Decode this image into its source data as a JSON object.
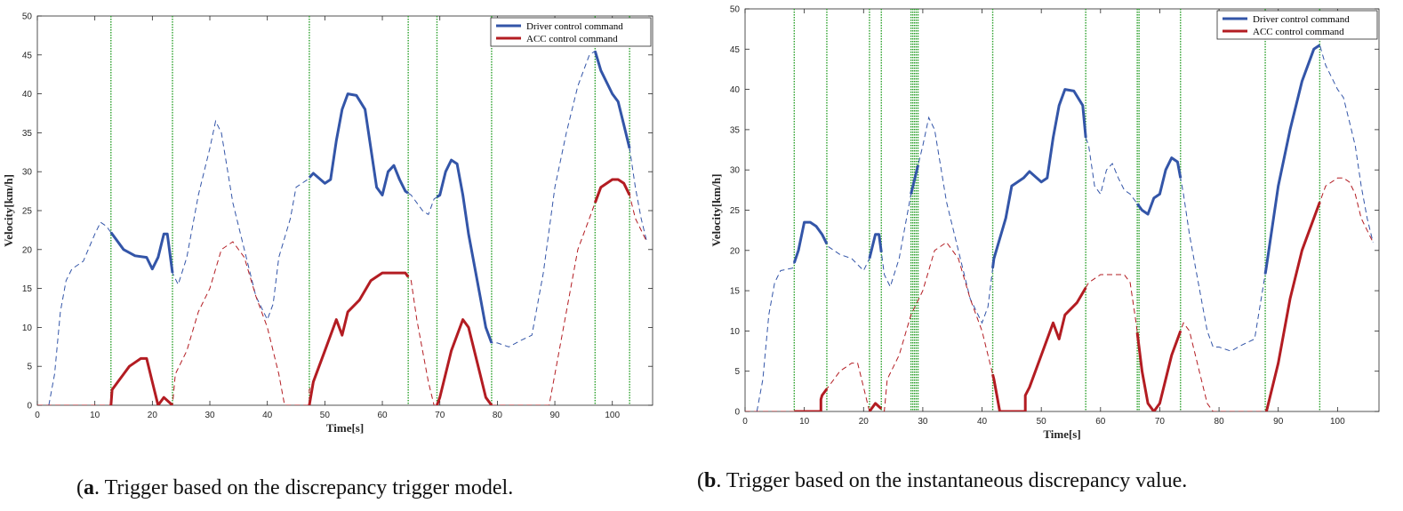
{
  "chart_data": [
    {
      "type": "line",
      "id": "a",
      "xlabel": "Time[s]",
      "ylabel": "Velocity[km/h]",
      "xlim": [
        0,
        107
      ],
      "ylim": [
        0,
        50
      ],
      "xticks": [
        0,
        10,
        20,
        30,
        40,
        50,
        60,
        70,
        80,
        90,
        100
      ],
      "yticks": [
        0,
        5,
        10,
        15,
        20,
        25,
        30,
        35,
        40,
        45,
        50
      ],
      "legend": [
        "Driver control command",
        "ACC control command"
      ],
      "legend_position": "top-right",
      "caption_bold": "a",
      "caption_text": ". Trigger based on the discrepancy trigger model.",
      "trigger_lines": [
        12.8,
        23.5,
        47.3,
        64.5,
        69.5,
        79,
        97,
        103
      ],
      "driver": [
        [
          2,
          0
        ],
        [
          3,
          4
        ],
        [
          4,
          12
        ],
        [
          5,
          16
        ],
        [
          6,
          17.5
        ],
        [
          8,
          18.5
        ],
        [
          10,
          22
        ],
        [
          11,
          23.5
        ],
        [
          12,
          23
        ],
        [
          13,
          22
        ],
        [
          15,
          20
        ],
        [
          17,
          19.2
        ],
        [
          19,
          19
        ],
        [
          20,
          17.5
        ],
        [
          21,
          19
        ],
        [
          22,
          22
        ],
        [
          22.6,
          22
        ],
        [
          23.5,
          17
        ],
        [
          24.5,
          15.5
        ],
        [
          26,
          19
        ],
        [
          28,
          27
        ],
        [
          30,
          33
        ],
        [
          31,
          36.5
        ],
        [
          32,
          35
        ],
        [
          34,
          26
        ],
        [
          36,
          20
        ],
        [
          38,
          14
        ],
        [
          40,
          11
        ],
        [
          41,
          13
        ],
        [
          42,
          19
        ],
        [
          44,
          24
        ],
        [
          45,
          28
        ],
        [
          47,
          29
        ],
        [
          48,
          29.8
        ],
        [
          50,
          28.5
        ],
        [
          51,
          29
        ],
        [
          52,
          34
        ],
        [
          53,
          38
        ],
        [
          54,
          40
        ],
        [
          55.5,
          39.8
        ],
        [
          57,
          38
        ],
        [
          58,
          33
        ],
        [
          59,
          28
        ],
        [
          60,
          27
        ],
        [
          61,
          30
        ],
        [
          62,
          30.8
        ],
        [
          63,
          29
        ],
        [
          64,
          27.5
        ],
        [
          65,
          27
        ],
        [
          66,
          26
        ],
        [
          67,
          25
        ],
        [
          68,
          24.5
        ],
        [
          69,
          26.5
        ],
        [
          70,
          27
        ],
        [
          71,
          30
        ],
        [
          72,
          31.5
        ],
        [
          73,
          31
        ],
        [
          74,
          27
        ],
        [
          75,
          22
        ],
        [
          76,
          18
        ],
        [
          77,
          14
        ],
        [
          78,
          10
        ],
        [
          79,
          8
        ],
        [
          80,
          8
        ],
        [
          82,
          7.5
        ],
        [
          84,
          8.3
        ],
        [
          86,
          9
        ],
        [
          88,
          17
        ],
        [
          90,
          28
        ],
        [
          92,
          35
        ],
        [
          94,
          41
        ],
        [
          96,
          45
        ],
        [
          97,
          45.5
        ],
        [
          98,
          43
        ],
        [
          100,
          40
        ],
        [
          101,
          39
        ],
        [
          102,
          36
        ],
        [
          103,
          33
        ],
        [
          104,
          28
        ],
        [
          105,
          24
        ],
        [
          106,
          21
        ]
      ],
      "acc": [
        [
          0,
          0
        ],
        [
          12.8,
          0
        ],
        [
          12.8,
          1.5
        ],
        [
          13,
          2
        ],
        [
          14,
          3
        ],
        [
          15,
          4
        ],
        [
          16,
          5
        ],
        [
          17,
          5.5
        ],
        [
          18,
          6
        ],
        [
          19,
          6
        ],
        [
          20,
          3
        ],
        [
          21,
          0
        ],
        [
          22,
          1
        ],
        [
          23.5,
          0
        ],
        [
          24,
          4
        ],
        [
          26,
          7
        ],
        [
          28,
          12
        ],
        [
          30,
          15
        ],
        [
          32,
          20
        ],
        [
          34,
          21
        ],
        [
          36,
          19
        ],
        [
          38,
          14
        ],
        [
          40,
          10
        ],
        [
          42,
          4
        ],
        [
          43,
          0
        ],
        [
          47.3,
          0
        ],
        [
          47.3,
          2
        ],
        [
          48,
          3
        ],
        [
          50,
          7
        ],
        [
          52,
          11
        ],
        [
          53,
          9
        ],
        [
          54,
          12
        ],
        [
          56,
          13.5
        ],
        [
          58,
          16
        ],
        [
          60,
          17
        ],
        [
          62,
          17
        ],
        [
          64,
          17
        ],
        [
          65,
          16
        ],
        [
          66,
          11
        ],
        [
          67,
          7
        ],
        [
          68,
          3
        ],
        [
          69,
          0
        ],
        [
          69.5,
          0
        ],
        [
          70,
          1
        ],
        [
          72,
          7
        ],
        [
          74,
          11
        ],
        [
          75,
          10
        ],
        [
          77,
          4
        ],
        [
          78,
          1
        ],
        [
          79,
          0
        ],
        [
          89,
          0
        ],
        [
          90,
          4
        ],
        [
          92,
          12
        ],
        [
          94,
          20
        ],
        [
          96,
          24
        ],
        [
          97,
          26
        ],
        [
          98,
          28
        ],
        [
          100,
          29
        ],
        [
          101,
          29
        ],
        [
          102,
          28.5
        ],
        [
          103,
          27
        ],
        [
          104,
          24
        ],
        [
          106,
          21
        ]
      ],
      "driver_solid": [
        [
          12.8,
          23.5
        ],
        [
          47.3,
          64.5
        ],
        [
          69.5,
          79
        ],
        [
          97,
          103
        ]
      ],
      "acc_solid": [
        [
          12.8,
          23.5
        ],
        [
          47.3,
          64.5
        ],
        [
          69.5,
          79
        ],
        [
          97,
          103
        ]
      ]
    },
    {
      "type": "line",
      "id": "b",
      "xlabel": "Time[s]",
      "ylabel": "Velocity[km/h]",
      "xlim": [
        0,
        107
      ],
      "ylim": [
        0,
        50
      ],
      "xticks": [
        0,
        10,
        20,
        30,
        40,
        50,
        60,
        70,
        80,
        90,
        100
      ],
      "yticks": [
        0,
        5,
        10,
        15,
        20,
        25,
        30,
        35,
        40,
        45,
        50
      ],
      "legend": [
        "Driver control command",
        "ACC control command"
      ],
      "legend_position": "top-right",
      "caption_bold": "b",
      "caption_text": ". Trigger based on the instantaneous discrepancy value.",
      "trigger_lines": [
        8.3,
        13.8,
        21,
        23,
        28,
        28.3,
        28.6,
        28.9,
        29.2,
        41.8,
        57.5,
        66.2,
        66.5,
        73.5,
        87.8,
        97
      ],
      "driver": [
        [
          2,
          0
        ],
        [
          3,
          4
        ],
        [
          4,
          12
        ],
        [
          5,
          16
        ],
        [
          6,
          17.5
        ],
        [
          8,
          17.8
        ],
        [
          9,
          20
        ],
        [
          10,
          23.5
        ],
        [
          11,
          23.5
        ],
        [
          12,
          23
        ],
        [
          13,
          22
        ],
        [
          14,
          20.5
        ],
        [
          16,
          19.5
        ],
        [
          18,
          19
        ],
        [
          20,
          17.5
        ],
        [
          21,
          19
        ],
        [
          22,
          22
        ],
        [
          22.6,
          22
        ],
        [
          23.5,
          17
        ],
        [
          24.5,
          15.5
        ],
        [
          26,
          19
        ],
        [
          28,
          27
        ],
        [
          30,
          33
        ],
        [
          31,
          36.5
        ],
        [
          32,
          35
        ],
        [
          34,
          26
        ],
        [
          36,
          20
        ],
        [
          38,
          14
        ],
        [
          40,
          11
        ],
        [
          41,
          13
        ],
        [
          42,
          19
        ],
        [
          44,
          24
        ],
        [
          45,
          28
        ],
        [
          47,
          29
        ],
        [
          48,
          29.8
        ],
        [
          50,
          28.5
        ],
        [
          51,
          29
        ],
        [
          52,
          34
        ],
        [
          53,
          38
        ],
        [
          54,
          40
        ],
        [
          55.5,
          39.8
        ],
        [
          57,
          38
        ],
        [
          57.5,
          34
        ],
        [
          58,
          33
        ],
        [
          59,
          28
        ],
        [
          60,
          27
        ],
        [
          61,
          30
        ],
        [
          62,
          30.8
        ],
        [
          63,
          29
        ],
        [
          64,
          27.5
        ],
        [
          65,
          27
        ],
        [
          66,
          26
        ],
        [
          67,
          25
        ],
        [
          68,
          24.5
        ],
        [
          69,
          26.5
        ],
        [
          70,
          27
        ],
        [
          71,
          30
        ],
        [
          72,
          31.5
        ],
        [
          73,
          31
        ],
        [
          74,
          27
        ],
        [
          75,
          22
        ],
        [
          76,
          18
        ],
        [
          77,
          14
        ],
        [
          78,
          10
        ],
        [
          79,
          8
        ],
        [
          80,
          8
        ],
        [
          82,
          7.5
        ],
        [
          84,
          8.3
        ],
        [
          86,
          9
        ],
        [
          88,
          18
        ],
        [
          90,
          28
        ],
        [
          92,
          35
        ],
        [
          94,
          41
        ],
        [
          96,
          45
        ],
        [
          97,
          45.5
        ],
        [
          98,
          43
        ],
        [
          100,
          40
        ],
        [
          101,
          39
        ],
        [
          102,
          36
        ],
        [
          103,
          33
        ],
        [
          104,
          28
        ],
        [
          105,
          24
        ],
        [
          106,
          21
        ]
      ],
      "acc": [
        [
          0,
          0
        ],
        [
          12.8,
          0
        ],
        [
          12.8,
          1.5
        ],
        [
          13,
          2
        ],
        [
          14,
          3
        ],
        [
          15,
          4
        ],
        [
          16,
          5
        ],
        [
          17,
          5.5
        ],
        [
          18,
          6
        ],
        [
          19,
          6
        ],
        [
          20,
          3
        ],
        [
          21,
          0
        ],
        [
          22,
          1
        ],
        [
          23.5,
          0
        ],
        [
          24,
          4
        ],
        [
          26,
          7
        ],
        [
          28,
          12
        ],
        [
          30,
          15
        ],
        [
          32,
          20
        ],
        [
          34,
          21
        ],
        [
          36,
          19
        ],
        [
          38,
          14
        ],
        [
          40,
          10
        ],
        [
          42,
          4
        ],
        [
          43,
          0
        ],
        [
          47.3,
          0
        ],
        [
          47.3,
          2
        ],
        [
          48,
          3
        ],
        [
          50,
          7
        ],
        [
          52,
          11
        ],
        [
          53,
          9
        ],
        [
          54,
          12
        ],
        [
          56,
          13.5
        ],
        [
          58,
          16
        ],
        [
          60,
          17
        ],
        [
          62,
          17
        ],
        [
          64,
          17
        ],
        [
          65,
          16
        ],
        [
          66,
          11
        ],
        [
          67,
          5
        ],
        [
          68,
          1
        ],
        [
          69,
          0
        ],
        [
          70,
          1
        ],
        [
          72,
          7
        ],
        [
          74,
          11
        ],
        [
          75,
          10
        ],
        [
          77,
          4
        ],
        [
          78,
          1
        ],
        [
          79,
          0
        ],
        [
          88,
          0
        ],
        [
          90,
          6
        ],
        [
          92,
          14
        ],
        [
          94,
          20
        ],
        [
          96,
          24
        ],
        [
          97,
          26
        ],
        [
          98,
          28
        ],
        [
          100,
          29
        ],
        [
          101,
          29
        ],
        [
          102,
          28.5
        ],
        [
          103,
          27
        ],
        [
          104,
          24
        ],
        [
          106,
          21
        ]
      ],
      "driver_solid": [
        [
          8.3,
          13.8
        ],
        [
          21,
          23
        ],
        [
          28,
          29.2
        ],
        [
          41.8,
          57.5
        ],
        [
          66.2,
          73.5
        ],
        [
          87.8,
          97
        ]
      ],
      "acc_solid": [
        [
          8.3,
          13.8
        ],
        [
          21,
          23
        ],
        [
          41.8,
          57.5
        ],
        [
          66.2,
          73.5
        ],
        [
          87.8,
          97
        ]
      ]
    }
  ]
}
